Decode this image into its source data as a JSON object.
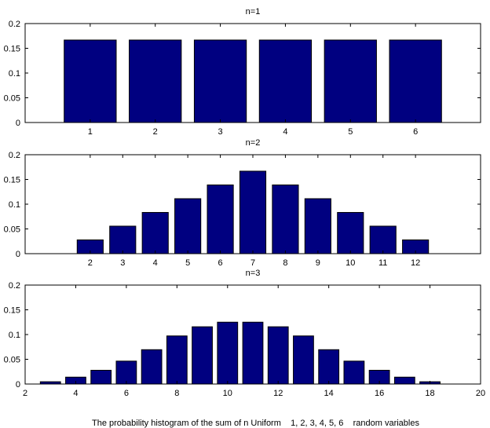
{
  "figure_caption": "The probability histogram of the sum of n Uniform    1, 2, 3, 4, 5, 6    random variables",
  "colors": {
    "bar_fill": "#000080",
    "bar_edge": "#000000",
    "axes": "#000000",
    "background": "#ffffff"
  },
  "chart_data": [
    {
      "type": "bar",
      "title": "n=1",
      "categories": [
        "1",
        "2",
        "3",
        "4",
        "5",
        "6"
      ],
      "x": [
        1,
        2,
        3,
        4,
        5,
        6
      ],
      "values": [
        0.1667,
        0.1667,
        0.1667,
        0.1667,
        0.1667,
        0.1667
      ],
      "xlim": [
        0,
        7
      ],
      "ylim": [
        0,
        0.2
      ],
      "yticks": [
        "0",
        "0.05",
        "0.1",
        "0.15",
        "0.2"
      ],
      "ytick_values": [
        0,
        0.05,
        0.1,
        0.15,
        0.2
      ],
      "xticks": [
        "1",
        "2",
        "3",
        "4",
        "5",
        "6"
      ],
      "xtick_values": [
        1,
        2,
        3,
        4,
        5,
        6
      ],
      "bar_width": 0.8,
      "xlabel": "",
      "ylabel": ""
    },
    {
      "type": "bar",
      "title": "n=2",
      "categories": [
        "2",
        "3",
        "4",
        "5",
        "6",
        "7",
        "8",
        "9",
        "10",
        "11",
        "12"
      ],
      "x": [
        2,
        3,
        4,
        5,
        6,
        7,
        8,
        9,
        10,
        11,
        12
      ],
      "values": [
        0.0278,
        0.0556,
        0.0833,
        0.1111,
        0.1389,
        0.1667,
        0.1389,
        0.1111,
        0.0833,
        0.0556,
        0.0278
      ],
      "xlim": [
        0,
        14
      ],
      "ylim": [
        0,
        0.2
      ],
      "yticks": [
        "0",
        "0.05",
        "0.1",
        "0.15",
        "0.2"
      ],
      "ytick_values": [
        0,
        0.05,
        0.1,
        0.15,
        0.2
      ],
      "xticks": [
        "2",
        "3",
        "4",
        "5",
        "6",
        "7",
        "8",
        "9",
        "10",
        "11",
        "12"
      ],
      "xtick_values": [
        2,
        3,
        4,
        5,
        6,
        7,
        8,
        9,
        10,
        11,
        12
      ],
      "bar_width": 0.8,
      "xlabel": "",
      "ylabel": ""
    },
    {
      "type": "bar",
      "title": "n=3",
      "categories": [
        "3",
        "4",
        "5",
        "6",
        "7",
        "8",
        "9",
        "10",
        "11",
        "12",
        "13",
        "14",
        "15",
        "16",
        "17",
        "18"
      ],
      "x": [
        3,
        4,
        5,
        6,
        7,
        8,
        9,
        10,
        11,
        12,
        13,
        14,
        15,
        16,
        17,
        18
      ],
      "values": [
        0.0046,
        0.0139,
        0.0278,
        0.0463,
        0.0694,
        0.0972,
        0.1157,
        0.125,
        0.125,
        0.1157,
        0.0972,
        0.0694,
        0.0463,
        0.0278,
        0.0139,
        0.0046
      ],
      "xlim": [
        2,
        20
      ],
      "ylim": [
        0,
        0.2
      ],
      "yticks": [
        "0",
        "0.05",
        "0.1",
        "0.15",
        "0.2"
      ],
      "ytick_values": [
        0,
        0.05,
        0.1,
        0.15,
        0.2
      ],
      "xticks": [
        "2",
        "4",
        "6",
        "8",
        "10",
        "12",
        "14",
        "16",
        "18",
        "20"
      ],
      "xtick_values": [
        2,
        4,
        6,
        8,
        10,
        12,
        14,
        16,
        18,
        20
      ],
      "bar_width": 0.8,
      "xlabel": "",
      "ylabel": ""
    }
  ]
}
